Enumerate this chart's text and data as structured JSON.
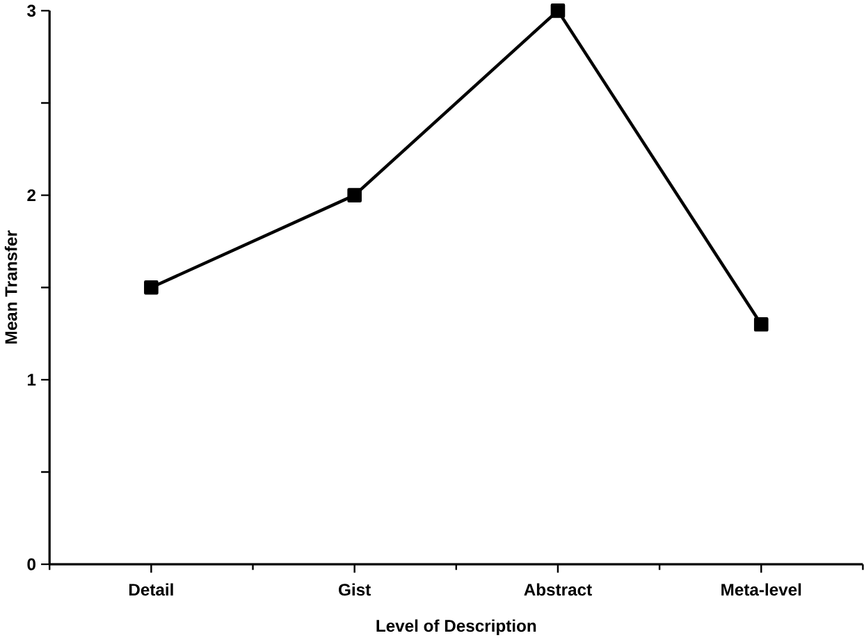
{
  "chart_data": {
    "type": "line",
    "xlabel": "Level of Description",
    "ylabel": "Mean Transfer",
    "categories": [
      "Detail",
      "Gist",
      "Abstract",
      "Meta-level"
    ],
    "values": [
      1.5,
      2.0,
      3.0,
      1.3
    ],
    "color": "#000000",
    "marker": "square",
    "line_style": "solid",
    "ylim": [
      0,
      3
    ],
    "yticks": [
      0,
      {
        "value": 0.5,
        "label": null
      },
      1,
      {
        "value": 1.5,
        "label": null
      },
      2,
      {
        "value": 2.5,
        "label": null
      },
      3
    ],
    "grid": false
  }
}
